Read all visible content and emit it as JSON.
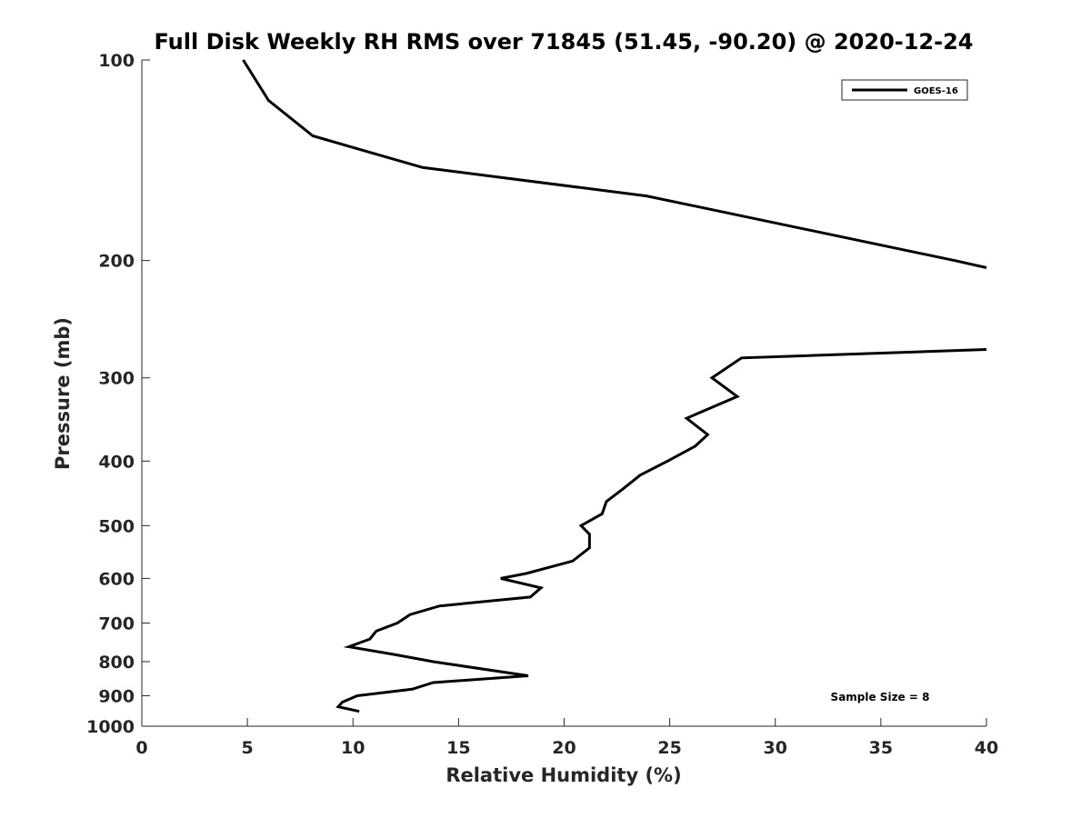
{
  "chart_data": {
    "type": "line",
    "title": "Full Disk Weekly RH RMS over 71845 (51.45, -90.20) @ 2020-12-24",
    "xlabel": "Relative Humidity (%)",
    "ylabel": "Pressure (mb)",
    "xlim": [
      0,
      40
    ],
    "ylim": [
      100,
      1000
    ],
    "y_scale": "log",
    "y_reversed": true,
    "x_ticks": [
      0,
      5,
      10,
      15,
      20,
      25,
      30,
      35,
      40
    ],
    "y_ticks": [
      100,
      200,
      300,
      400,
      500,
      600,
      700,
      800,
      900,
      1000
    ],
    "grid": false,
    "legend_position": "top-right",
    "annotation": "Sample Size = 8",
    "series": [
      {
        "name": "GOES-16",
        "color": "#000000",
        "segments": [
          [
            {
              "x": 4.8,
              "y": 100
            },
            {
              "x": 6.0,
              "y": 115
            },
            {
              "x": 8.1,
              "y": 130
            },
            {
              "x": 13.3,
              "y": 145
            },
            {
              "x": 23.9,
              "y": 160
            },
            {
              "x": 38.5,
              "y": 200
            },
            {
              "x": 40.0,
              "y": 205
            }
          ],
          [
            {
              "x": 40.0,
              "y": 272
            },
            {
              "x": 28.4,
              "y": 280
            },
            {
              "x": 27.0,
              "y": 300
            },
            {
              "x": 28.2,
              "y": 320
            },
            {
              "x": 25.8,
              "y": 345
            },
            {
              "x": 26.8,
              "y": 365
            },
            {
              "x": 26.2,
              "y": 380
            },
            {
              "x": 24.9,
              "y": 400
            },
            {
              "x": 23.6,
              "y": 420
            },
            {
              "x": 22.8,
              "y": 440
            },
            {
              "x": 22.0,
              "y": 460
            },
            {
              "x": 21.8,
              "y": 480
            },
            {
              "x": 20.8,
              "y": 500
            },
            {
              "x": 21.2,
              "y": 515
            },
            {
              "x": 21.2,
              "y": 540
            },
            {
              "x": 20.4,
              "y": 565
            },
            {
              "x": 18.2,
              "y": 590
            },
            {
              "x": 17.0,
              "y": 600
            },
            {
              "x": 18.9,
              "y": 620
            },
            {
              "x": 18.4,
              "y": 640
            },
            {
              "x": 14.1,
              "y": 660
            },
            {
              "x": 12.7,
              "y": 680
            },
            {
              "x": 12.1,
              "y": 700
            },
            {
              "x": 11.1,
              "y": 720
            },
            {
              "x": 10.8,
              "y": 740
            },
            {
              "x": 9.8,
              "y": 760
            },
            {
              "x": 11.9,
              "y": 780
            },
            {
              "x": 13.8,
              "y": 800
            },
            {
              "x": 18.3,
              "y": 840
            },
            {
              "x": 13.8,
              "y": 860
            },
            {
              "x": 12.8,
              "y": 880
            },
            {
              "x": 10.2,
              "y": 900
            },
            {
              "x": 9.5,
              "y": 920
            },
            {
              "x": 9.3,
              "y": 935
            },
            {
              "x": 10.3,
              "y": 950
            }
          ]
        ]
      }
    ]
  }
}
